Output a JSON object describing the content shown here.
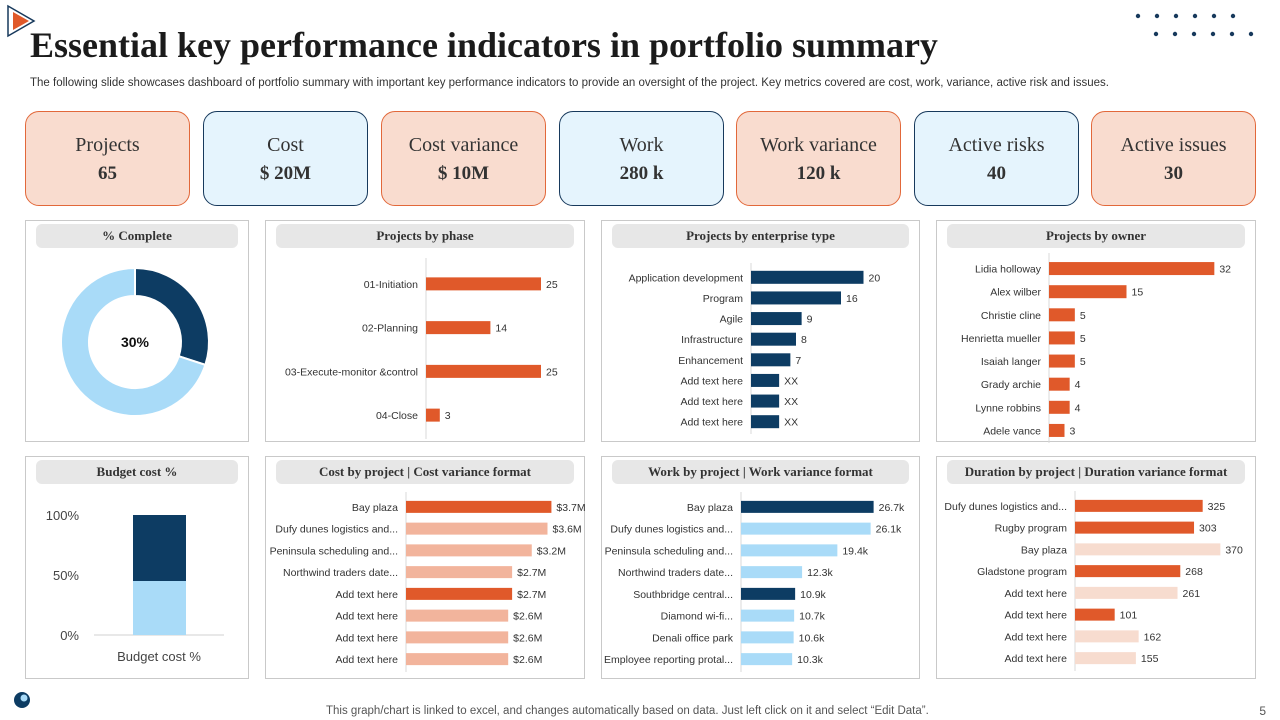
{
  "title": "Essential key performance indicators in portfolio summary",
  "subtitle": "The following slide showcases dashboard of portfolio summary with important key performance indicators to provide an oversight of the project. Key metrics covered are cost, work, variance, active risk and issues.",
  "kpis": [
    {
      "label": "Projects",
      "value": "65"
    },
    {
      "label": "Cost",
      "value": "$ 20M"
    },
    {
      "label": "Cost variance",
      "value": "$ 10M"
    },
    {
      "label": "Work",
      "value": "280 k"
    },
    {
      "label": "Work variance",
      "value": "120 k"
    },
    {
      "label": "Active risks",
      "value": "40"
    },
    {
      "label": "Active issues",
      "value": "30"
    }
  ],
  "colors": {
    "navy": "#0d3c63",
    "orange": "#e0592a",
    "light_blue": "#a9dbf8",
    "light_orange": "#f2b49c",
    "pale_orange": "#f7dccf",
    "kpi_peach": "#f9dccf",
    "kpi_blue": "#e5f4fd"
  },
  "chart_data": [
    {
      "id": "complete",
      "type": "pie",
      "title": "% Complete",
      "center_label": "30%",
      "slices": [
        {
          "value": 30,
          "color": "#0d3c63"
        },
        {
          "value": 70,
          "color": "#a9dbf8"
        }
      ]
    },
    {
      "id": "phase",
      "type": "bar",
      "orientation": "horizontal",
      "title": "Projects by phase",
      "categories": [
        "01-Initiation",
        "02-Planning",
        "03-Execute-monitor &control",
        "04-Close"
      ],
      "values": [
        25,
        14,
        25,
        3
      ],
      "labels": [
        "25",
        "14",
        "25",
        "3"
      ],
      "colors": [
        "#e0592a",
        "#e0592a",
        "#e0592a",
        "#e0592a"
      ],
      "xlim": [
        0,
        30
      ]
    },
    {
      "id": "enterprise",
      "type": "bar",
      "orientation": "horizontal",
      "title": "Projects by enterprise type",
      "categories": [
        "Application development",
        "Program",
        "Agile",
        "Infrastructure",
        "Enhancement",
        "Add text here",
        "Add text here",
        "Add text here"
      ],
      "values": [
        20,
        16,
        9,
        8,
        7,
        5,
        5,
        5
      ],
      "labels": [
        "20",
        "16",
        "9",
        "8",
        "7",
        "XX",
        "XX",
        "XX"
      ],
      "colors": [
        "#0d3c63",
        "#0d3c63",
        "#0d3c63",
        "#0d3c63",
        "#0d3c63",
        "#0d3c63",
        "#0d3c63",
        "#0d3c63"
      ],
      "xlim": [
        0,
        24
      ]
    },
    {
      "id": "owner",
      "type": "bar",
      "orientation": "horizontal",
      "title": "Projects by owner",
      "categories": [
        "Lidia holloway",
        "Alex wilber",
        "Christie cline",
        "Henrietta mueller",
        "Isaiah langer",
        "Grady archie",
        "Lynne robbins",
        "Adele vance"
      ],
      "values": [
        32,
        15,
        5,
        5,
        5,
        4,
        4,
        3
      ],
      "labels": [
        "32",
        "15",
        "5",
        "5",
        "5",
        "4",
        "4",
        "3"
      ],
      "colors": [
        "#e0592a",
        "#e0592a",
        "#e0592a",
        "#e0592a",
        "#e0592a",
        "#e0592a",
        "#e0592a",
        "#e0592a"
      ],
      "xlim": [
        0,
        36
      ]
    },
    {
      "id": "budget",
      "type": "bar",
      "orientation": "vertical-stacked",
      "title": "Budget cost %",
      "categories": [
        "Budget cost %"
      ],
      "yticks": [
        "100%",
        "50%",
        "0%"
      ],
      "ylim": [
        0,
        100
      ],
      "segments": [
        {
          "value": 45,
          "color": "#a9dbf8"
        },
        {
          "value": 55,
          "color": "#0d3c63"
        }
      ]
    },
    {
      "id": "cost",
      "type": "bar",
      "orientation": "horizontal",
      "title": "Cost by project | Cost variance format",
      "categories": [
        "Bay plaza",
        "Dufy dunes logistics and...",
        "Peninsula scheduling and...",
        "Northwind traders date...",
        "Add text here",
        "Add text here",
        "Add text here",
        "Add text here"
      ],
      "values": [
        3.7,
        3.6,
        3.2,
        2.7,
        2.7,
        2.6,
        2.6,
        2.6
      ],
      "labels": [
        "$3.7M",
        "$3.6M",
        "$3.2M",
        "$2.7M",
        "$2.7M",
        "$2.6M",
        "$2.6M",
        "$2.6M"
      ],
      "colors": [
        "#e0592a",
        "#f2b49c",
        "#f2b49c",
        "#f2b49c",
        "#e0592a",
        "#f2b49c",
        "#f2b49c",
        "#f2b49c"
      ],
      "xlim": [
        0,
        4.3
      ]
    },
    {
      "id": "work",
      "type": "bar",
      "orientation": "horizontal",
      "title": "Work by project | Work variance format",
      "categories": [
        "Bay plaza",
        "Dufy dunes logistics and...",
        "Peninsula scheduling and...",
        "Northwind traders date...",
        "Southbridge central...",
        "Diamond wi-fi...",
        "Denali office park",
        "Employee reporting protal..."
      ],
      "values": [
        26.7,
        26.1,
        19.4,
        12.3,
        10.9,
        10.7,
        10.6,
        10.3
      ],
      "labels": [
        "26.7k",
        "26.1k",
        "19.4k",
        "12.3k",
        "10.9k",
        "10.7k",
        "10.6k",
        "10.3k"
      ],
      "colors": [
        "#0d3c63",
        "#a9dbf8",
        "#a9dbf8",
        "#a9dbf8",
        "#0d3c63",
        "#a9dbf8",
        "#a9dbf8",
        "#a9dbf8"
      ],
      "xlim": [
        0,
        30
      ]
    },
    {
      "id": "duration",
      "type": "bar",
      "orientation": "horizontal",
      "title": "Duration by project | Duration variance format",
      "categories": [
        "Dufy dunes logistics and...",
        "Rugby program",
        "Bay plaza",
        "Gladstone program",
        "Add text here",
        "Add text here",
        "Add text here",
        "Add text here"
      ],
      "values": [
        325,
        303,
        370,
        268,
        261,
        101,
        162,
        155
      ],
      "labels": [
        "325",
        "303",
        "370",
        "268",
        "261",
        "101",
        "162",
        "155"
      ],
      "colors": [
        "#e0592a",
        "#e0592a",
        "#f7dccf",
        "#e0592a",
        "#f7dccf",
        "#e0592a",
        "#f7dccf",
        "#f7dccf"
      ],
      "xlim": [
        0,
        420
      ]
    }
  ],
  "footer": {
    "note": "This graph/chart is linked to excel, and changes automatically based on data. Just left click on it and select “Edit Data”.",
    "page": "5"
  }
}
